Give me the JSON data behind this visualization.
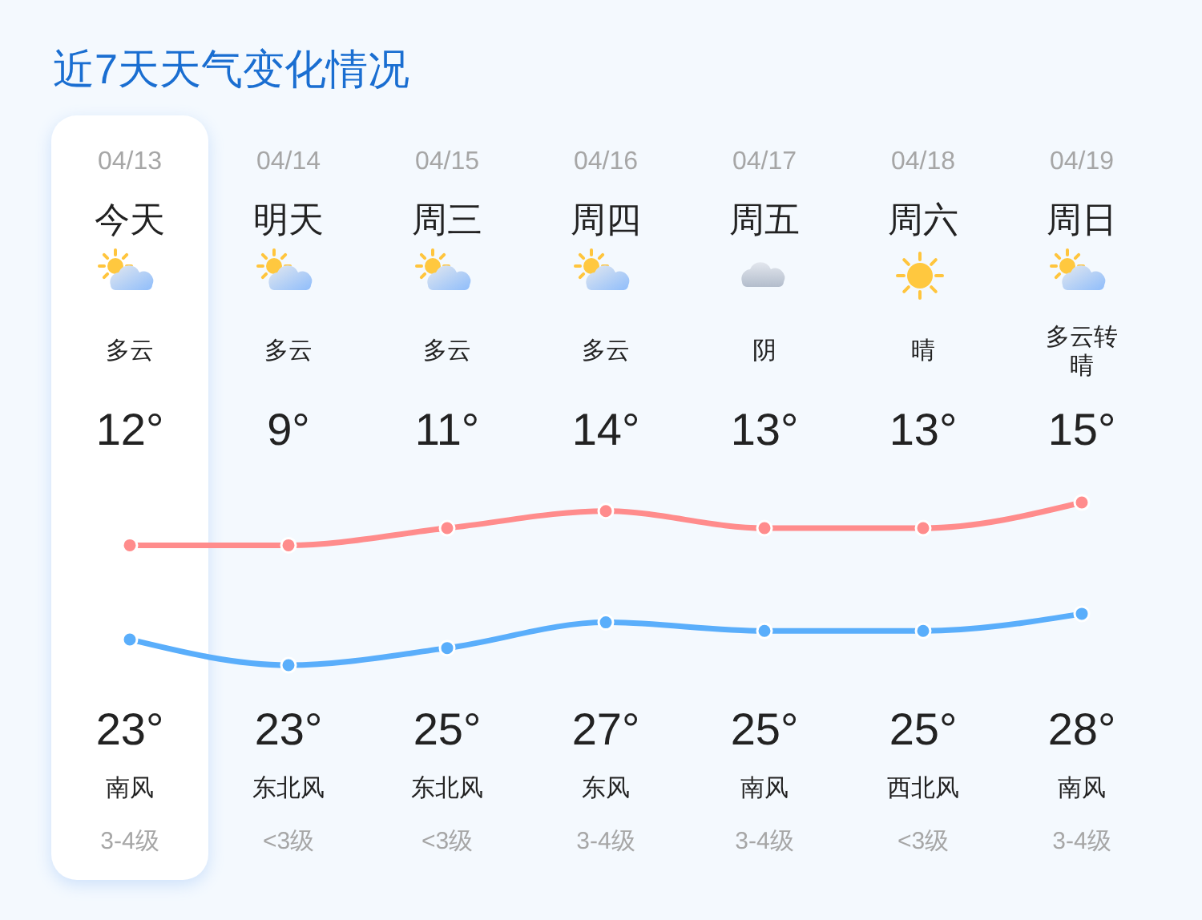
{
  "chart_data": {
    "type": "line",
    "title": "近7天天气变化情况",
    "categories": [
      "04/13",
      "04/14",
      "04/15",
      "04/16",
      "04/17",
      "04/18",
      "04/19"
    ],
    "series": [
      {
        "color": "#5aaefb",
        "values": [
          12,
          9,
          11,
          14,
          13,
          13,
          15
        ],
        "value_labels": [
          "12°",
          "9°",
          "11°",
          "14°",
          "13°",
          "13°",
          "15°"
        ]
      },
      {
        "color": "#ff8c8c",
        "values": [
          23,
          23,
          25,
          27,
          25,
          25,
          28
        ],
        "value_labels": [
          "23°",
          "23°",
          "25°",
          "27°",
          "25°",
          "25°",
          "28°"
        ]
      }
    ],
    "marker": "circle",
    "line_style": "solid",
    "bands": [
      {
        "axis": "x",
        "from": "04/13",
        "to": "04/13",
        "color": "#ffffff"
      }
    ],
    "annotations": [
      "今天",
      "明天",
      "周三",
      "周四",
      "周五",
      "周六",
      "周日",
      "多云",
      "多云",
      "多云",
      "多云",
      "阴",
      "晴",
      "多云转晴",
      "南风",
      "东北风",
      "东北风",
      "东风",
      "南风",
      "西北风",
      "南风",
      "3-4级",
      "<3级",
      "<3级",
      "3-4级",
      "3-4级",
      "<3级",
      "3-4级"
    ]
  }
}
